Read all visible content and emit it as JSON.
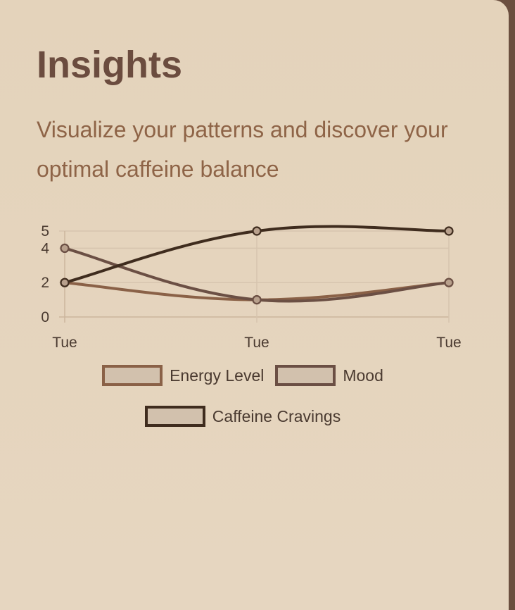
{
  "card": {
    "title": "Insights",
    "subtitle": "Visualize your patterns and discover your optimal caffeine balance"
  },
  "chart_data": {
    "type": "line",
    "title": "",
    "xlabel": "",
    "ylabel": "",
    "categories": [
      "Tue",
      "Tue",
      "Tue"
    ],
    "y_ticks": [
      0,
      2,
      4,
      5
    ],
    "ylim": [
      0,
      5
    ],
    "grid": true,
    "legend_position": "bottom",
    "series": [
      {
        "name": "Energy Level",
        "values": [
          2,
          1,
          2
        ],
        "color": "#8a6147"
      },
      {
        "name": "Mood",
        "values": [
          4,
          1,
          2
        ],
        "color": "#6b4f44"
      },
      {
        "name": "Caffeine Cravings",
        "values": [
          2,
          5,
          5
        ],
        "color": "#3f2c1e"
      }
    ]
  }
}
